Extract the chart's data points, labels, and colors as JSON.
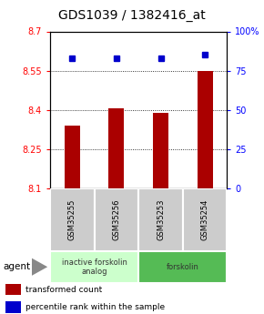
{
  "title": "GDS1039 / 1382416_at",
  "samples": [
    "GSM35255",
    "GSM35256",
    "GSM35253",
    "GSM35254"
  ],
  "bar_values": [
    8.34,
    8.405,
    8.39,
    8.55
  ],
  "percentile_values": [
    83,
    83,
    83,
    85
  ],
  "bar_color": "#AA0000",
  "dot_color": "#0000CC",
  "ylim_left": [
    8.1,
    8.7
  ],
  "ylim_right": [
    0,
    100
  ],
  "yticks_left": [
    8.1,
    8.25,
    8.4,
    8.55,
    8.7
  ],
  "yticks_right": [
    0,
    25,
    50,
    75,
    100
  ],
  "ytick_labels_left": [
    "8.1",
    "8.25",
    "8.4",
    "8.55",
    "8.7"
  ],
  "ytick_labels_right": [
    "0",
    "25",
    "50",
    "75",
    "100%"
  ],
  "groups": [
    {
      "label": "inactive forskolin\nanalog",
      "span": [
        0,
        2
      ],
      "color": "#ccffcc"
    },
    {
      "label": "forskolin",
      "span": [
        2,
        4
      ],
      "color": "#55bb55"
    }
  ],
  "agent_label": "agent",
  "legend_items": [
    {
      "color": "#AA0000",
      "label": "transformed count"
    },
    {
      "color": "#0000CC",
      "label": "percentile rank within the sample"
    }
  ],
  "background_plot": "#ffffff",
  "sample_box_color": "#cccccc",
  "title_fontsize": 10,
  "tick_fontsize": 7,
  "bar_width": 0.35
}
